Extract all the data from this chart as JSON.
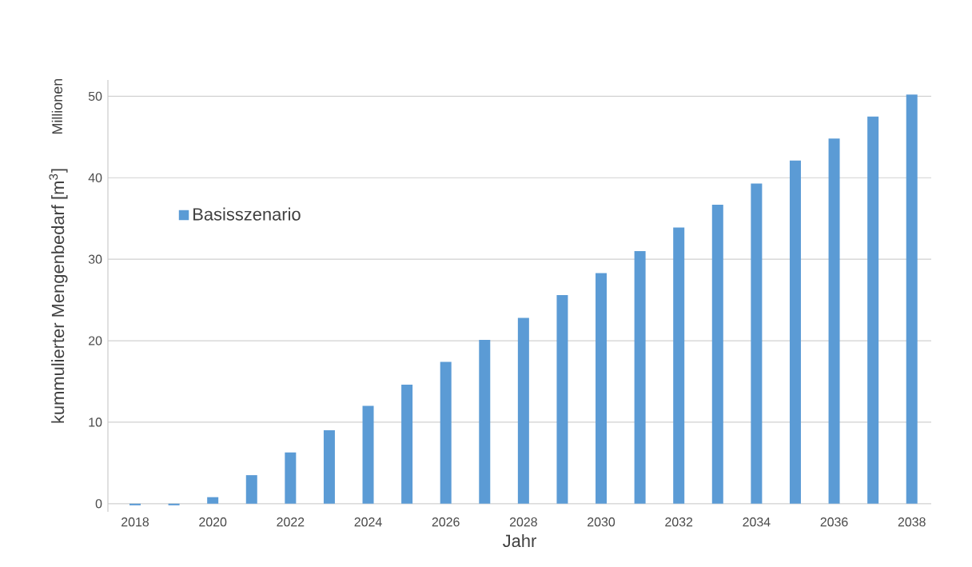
{
  "chart_data": {
    "type": "bar",
    "xlabel": "Jahr",
    "ylabel": "kummulierter Mengenbedarf [m$^{3}$]",
    "annotations": [
      "Millionen"
    ],
    "x": [
      2018,
      2019,
      2020,
      2021,
      2022,
      2023,
      2024,
      2025,
      2026,
      2027,
      2028,
      2029,
      2030,
      2031,
      2032,
      2033,
      2034,
      2035,
      2036,
      2037,
      2038
    ],
    "series": [
      {
        "name": "Basisszenario",
        "color": "#5b9bd5",
        "values": [
          -0.2,
          -0.2,
          0.8,
          3.5,
          6.3,
          9.0,
          12.0,
          14.6,
          17.4,
          20.1,
          22.8,
          25.6,
          28.3,
          31.0,
          33.9,
          36.7,
          39.3,
          42.1,
          44.8,
          47.5,
          50.2
        ]
      }
    ],
    "xlim": [
      2017.3,
      2038.5
    ],
    "ylim": [
      -1,
      52
    ],
    "xticks": [
      2018,
      2020,
      2022,
      2024,
      2026,
      2028,
      2030,
      2032,
      2034,
      2036,
      2038
    ],
    "yticks": [
      0,
      10,
      20,
      30,
      40,
      50
    ],
    "grid": "y",
    "legend": "top left"
  }
}
